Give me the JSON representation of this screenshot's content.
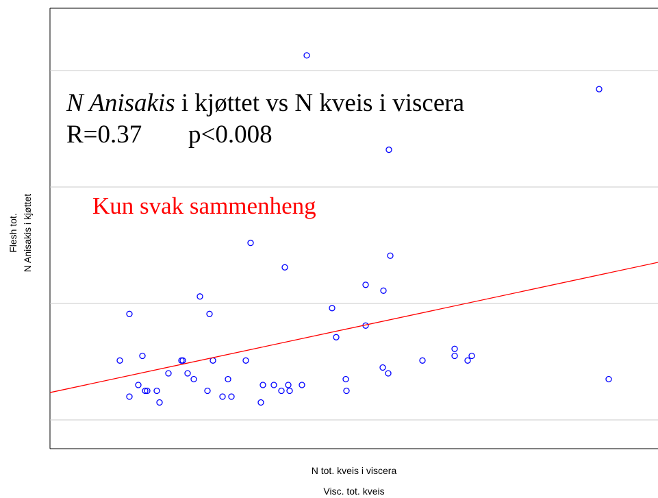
{
  "chart_data": {
    "type": "scatter",
    "annotation_line1": {
      "italic": "N Anisakis",
      "rest": " i kjøttet vs N kveis i viscera"
    },
    "annotation_line2": {
      "r": "R=0.37",
      "p": "p<0.008"
    },
    "comment": {
      "text": "Kun svak sammenheng",
      "color": "#ff0000"
    },
    "ylabel": [
      "Flesh tot.",
      "N Anisakis i kjøttet"
    ],
    "xlabel": [
      "N tot. kveis i viscera",
      "Visc. tot. kveis"
    ],
    "xlim": [
      0,
      88.8
    ],
    "ylim": [
      -2.47,
      35.35
    ],
    "yticks": [
      0,
      10,
      20,
      30
    ],
    "grid": true,
    "series": [
      {
        "color": "#0000ff",
        "x": [
          37.5,
          80.2,
          49.5,
          29.3,
          49.7,
          34.3,
          46.1,
          48.7,
          21.9,
          41.2,
          11.6,
          23.3,
          46.1,
          41.8,
          13.5,
          10.2,
          19.2,
          19.4,
          23.8,
          28.6,
          54.4,
          59.1,
          59.1,
          61.6,
          61.0,
          48.6,
          49.4,
          17.3,
          20.1,
          21.0,
          26.0,
          43.2,
          81.6,
          12.9,
          31.1,
          32.7,
          34.8,
          36.8,
          13.9,
          14.2,
          15.6,
          23.0,
          33.8,
          35.0,
          43.3,
          11.6,
          25.2,
          26.5,
          16.0,
          30.8
        ],
        "values": [
          31.3,
          28.4,
          23.2,
          15.2,
          14.1,
          13.1,
          11.6,
          11.1,
          10.6,
          9.6,
          9.1,
          9.1,
          8.1,
          7.1,
          5.5,
          5.1,
          5.1,
          5.1,
          5.1,
          5.1,
          5.1,
          6.1,
          5.5,
          5.5,
          5.1,
          4.5,
          4.0,
          4.0,
          4.0,
          3.5,
          3.5,
          3.5,
          3.5,
          3.0,
          3.0,
          3.0,
          3.0,
          3.0,
          2.5,
          2.5,
          2.5,
          2.5,
          2.5,
          2.5,
          2.5,
          2.0,
          2.0,
          2.0,
          1.5,
          1.5
        ]
      }
    ],
    "trend": {
      "color": "#ff0000",
      "x": [
        0,
        88.8
      ],
      "values": [
        2.35,
        13.53
      ]
    }
  }
}
